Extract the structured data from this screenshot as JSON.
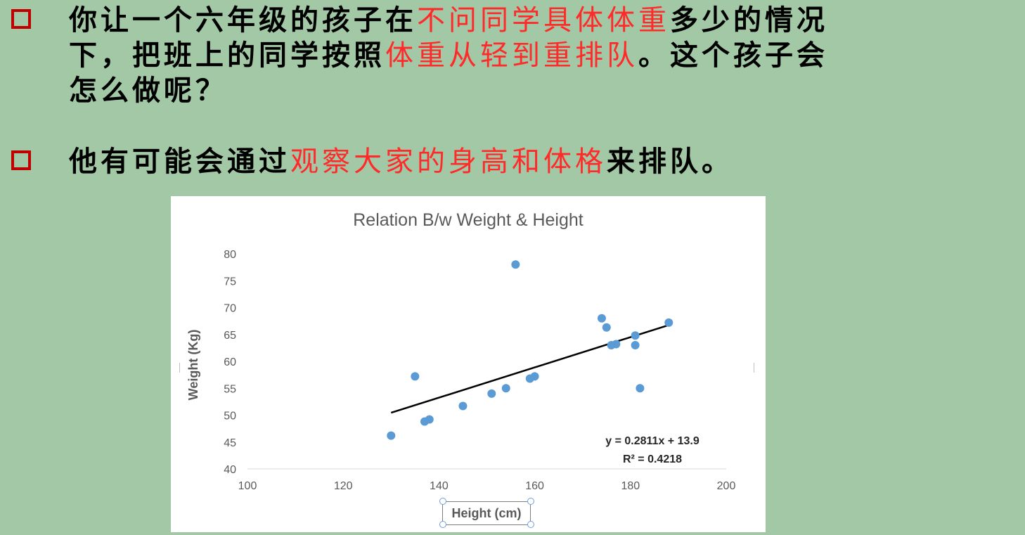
{
  "bullets": [
    {
      "line1_pre": "你让一个六年级的孩子在",
      "line1_red": "不问同学具体体重",
      "line1_post": "多少的情况",
      "line2_pre": "下，把班上的同学按照",
      "line2_red": "体重从轻到重排队",
      "line2_post": "。这个孩子会",
      "line3": "怎么做呢？"
    },
    {
      "pre": "他有可能会通过",
      "red": "观察大家的身高和体格",
      "post": "来排队。"
    }
  ],
  "colors": {
    "background": "#a2c8a6",
    "highlight": "#ff2a2a",
    "checkbox": "#c00000",
    "point": "#5b9bd5",
    "trendline": "#000000"
  },
  "chart_data": {
    "type": "scatter",
    "title": "Relation B/w Weight & Height",
    "xlabel": "Height (cm)",
    "ylabel": "Weight (Kg)",
    "xlim": [
      100,
      200
    ],
    "ylim": [
      40,
      80
    ],
    "x_ticks": [
      100,
      120,
      140,
      160,
      180,
      200
    ],
    "y_ticks": [
      40,
      45,
      50,
      55,
      60,
      65,
      70,
      75,
      80
    ],
    "grid": false,
    "series": [
      {
        "points": [
          [
            130,
            46.2
          ],
          [
            135,
            57.2
          ],
          [
            137,
            48.8
          ],
          [
            138,
            49.2
          ],
          [
            145,
            51.7
          ],
          [
            151,
            54.0
          ],
          [
            154,
            55.0
          ],
          [
            156,
            78.0
          ],
          [
            159,
            56.8
          ],
          [
            160,
            57.2
          ],
          [
            174,
            68.0
          ],
          [
            175,
            66.3
          ],
          [
            176,
            63.0
          ],
          [
            177,
            63.2
          ],
          [
            181,
            64.8
          ],
          [
            181,
            63.0
          ],
          [
            182,
            55.0
          ],
          [
            188,
            67.2
          ]
        ]
      }
    ],
    "trendline": {
      "slope": 0.2811,
      "intercept": 13.9,
      "x_range": [
        130,
        188
      ],
      "equation": "y = 0.2811x + 13.9",
      "r2": "R² = 0.4218"
    }
  }
}
